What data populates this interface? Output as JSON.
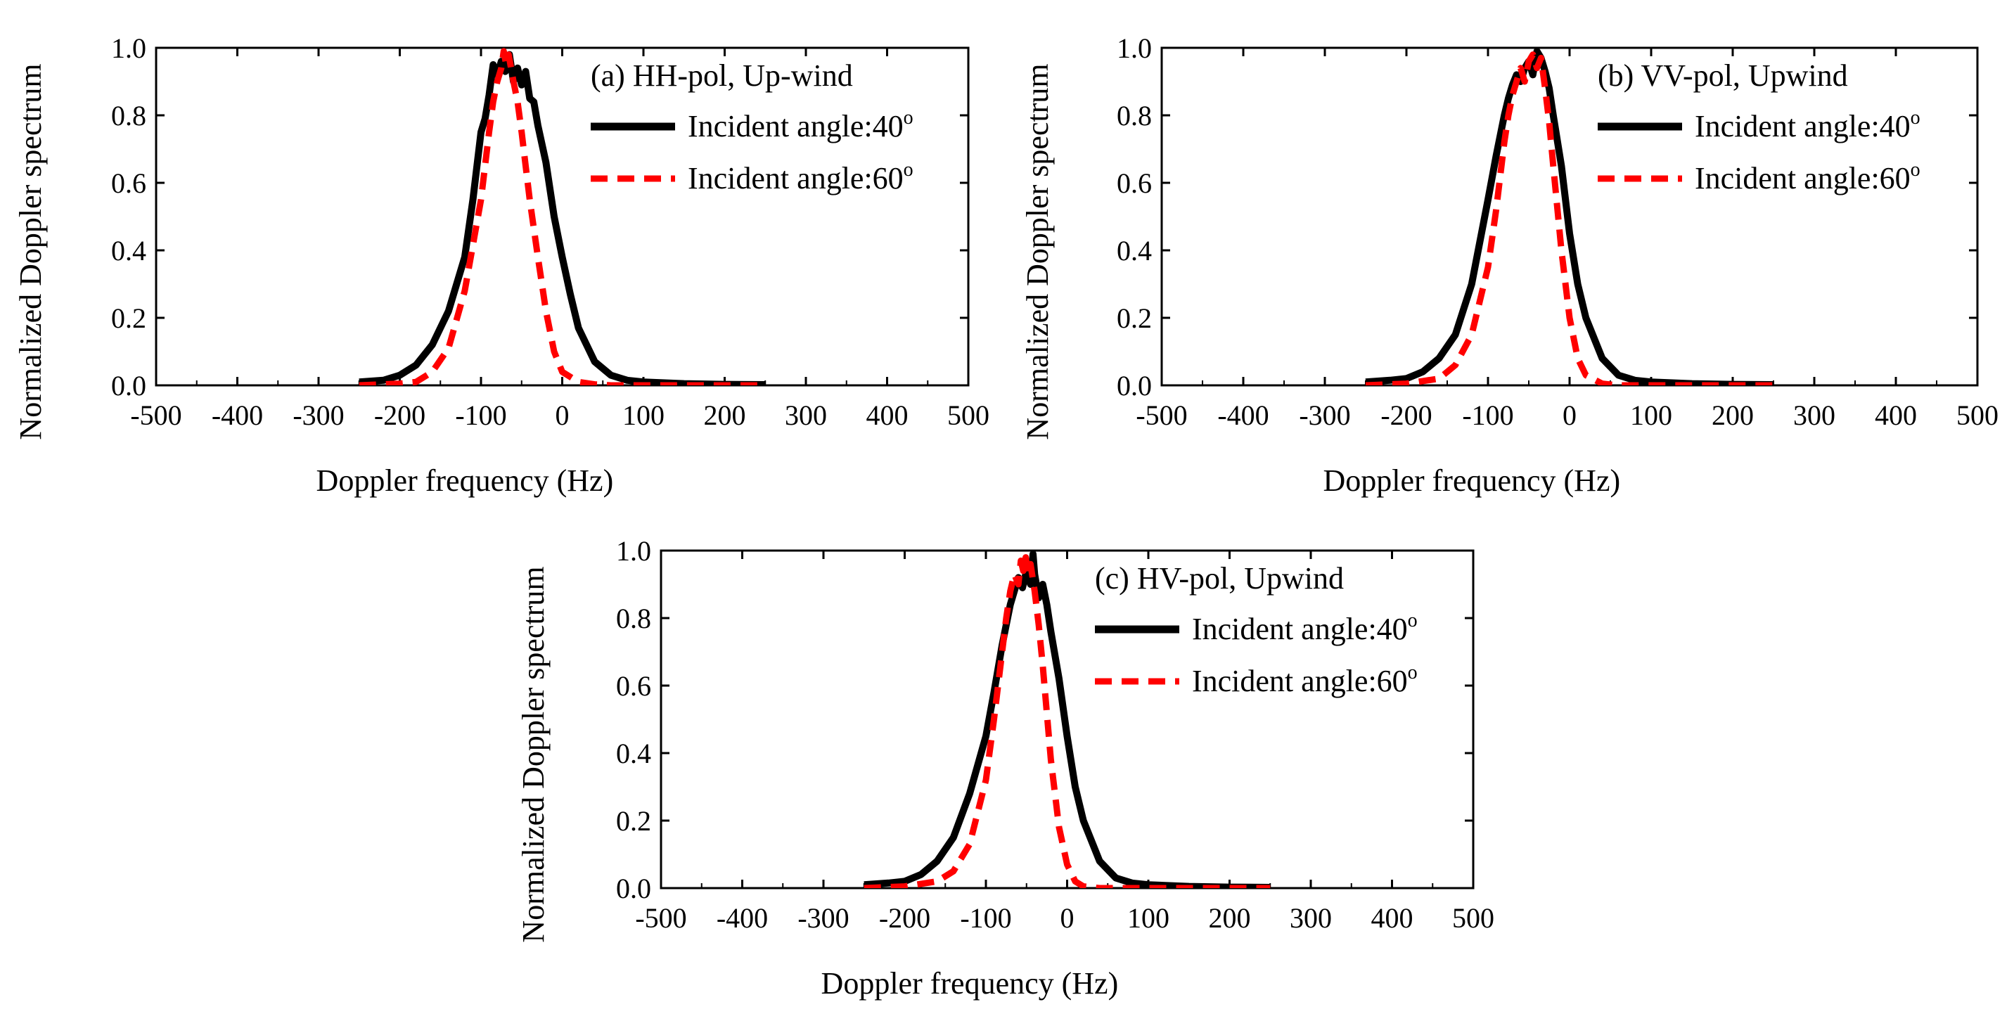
{
  "figure": {
    "background": "#ffffff"
  },
  "chart_data": [
    {
      "type": "line",
      "panel_label": "(a) HH-pol, Up-wind",
      "xlabel": "Doppler frequency (Hz)",
      "ylabel": "Normalized Doppler spectrum",
      "xlim": [
        -500,
        500
      ],
      "ylim": [
        0,
        1.0
      ],
      "xticks": [
        "-500",
        "-400",
        "-300",
        "-200",
        "-100",
        "0",
        "100",
        "200",
        "300",
        "400",
        "500"
      ],
      "yticks": [
        "0.0",
        "0.2",
        "0.4",
        "0.6",
        "0.8",
        "1.0"
      ],
      "legend_position": "top-right",
      "series": [
        {
          "name": "Incident angle:40",
          "superscript": "o",
          "color": "#000000",
          "style": "solid",
          "x": [
            -250,
            -220,
            -200,
            -180,
            -160,
            -140,
            -120,
            -110,
            -100,
            -95,
            -90,
            -85,
            -80,
            -75,
            -70,
            -65,
            -60,
            -55,
            -50,
            -45,
            -40,
            -35,
            -30,
            -20,
            -10,
            0,
            10,
            20,
            40,
            60,
            80,
            100,
            150,
            200,
            250
          ],
          "y": [
            0.01,
            0.015,
            0.03,
            0.06,
            0.12,
            0.22,
            0.38,
            0.55,
            0.75,
            0.79,
            0.86,
            0.95,
            0.92,
            0.96,
            0.93,
            0.98,
            0.9,
            0.94,
            0.89,
            0.93,
            0.85,
            0.84,
            0.77,
            0.66,
            0.5,
            0.38,
            0.27,
            0.17,
            0.07,
            0.03,
            0.015,
            0.01,
            0.005,
            0.003,
            0.002
          ]
        },
        {
          "name": "Incident angle:60",
          "superscript": "o",
          "color": "#ff0000",
          "style": "dashed",
          "x": [
            -250,
            -200,
            -180,
            -160,
            -140,
            -120,
            -100,
            -90,
            -85,
            -80,
            -75,
            -72,
            -69,
            -66,
            -63,
            -60,
            -55,
            -50,
            -45,
            -40,
            -30,
            -20,
            -10,
            0,
            20,
            40,
            60,
            100,
            150,
            200,
            250
          ],
          "y": [
            0.0,
            0.005,
            0.01,
            0.04,
            0.11,
            0.28,
            0.55,
            0.75,
            0.84,
            0.9,
            0.94,
            0.99,
            0.95,
            0.98,
            0.94,
            0.9,
            0.84,
            0.75,
            0.65,
            0.55,
            0.38,
            0.22,
            0.1,
            0.04,
            0.01,
            0.003,
            0.0,
            0.0,
            0.0,
            0.0,
            0.0
          ]
        }
      ]
    },
    {
      "type": "line",
      "panel_label": "(b) VV-pol, Upwind",
      "xlabel": "Doppler frequency (Hz)",
      "ylabel": "Normalized Doppler spectrum",
      "xlim": [
        -500,
        500
      ],
      "ylim": [
        0,
        1.0
      ],
      "xticks": [
        "-500",
        "-400",
        "-300",
        "-200",
        "-100",
        "0",
        "100",
        "200",
        "300",
        "400",
        "500"
      ],
      "yticks": [
        "0.0",
        "0.2",
        "0.4",
        "0.6",
        "0.8",
        "1.0"
      ],
      "legend_position": "top-right",
      "series": [
        {
          "name": "Incident angle:40",
          "superscript": "o",
          "color": "#000000",
          "style": "solid",
          "x": [
            -250,
            -220,
            -200,
            -180,
            -160,
            -140,
            -120,
            -100,
            -90,
            -80,
            -75,
            -70,
            -65,
            -60,
            -55,
            -50,
            -45,
            -40,
            -35,
            -30,
            -25,
            -20,
            -10,
            0,
            10,
            20,
            40,
            60,
            80,
            100,
            150,
            200,
            250
          ],
          "y": [
            0.01,
            0.015,
            0.02,
            0.04,
            0.08,
            0.15,
            0.3,
            0.55,
            0.68,
            0.8,
            0.85,
            0.89,
            0.92,
            0.9,
            0.94,
            0.96,
            0.92,
            0.99,
            0.97,
            0.93,
            0.88,
            0.8,
            0.65,
            0.45,
            0.3,
            0.2,
            0.08,
            0.03,
            0.015,
            0.01,
            0.005,
            0.003,
            0.002
          ]
        },
        {
          "name": "Incident angle:60",
          "superscript": "o",
          "color": "#ff0000",
          "style": "dashed",
          "x": [
            -250,
            -200,
            -160,
            -140,
            -120,
            -100,
            -90,
            -80,
            -75,
            -70,
            -65,
            -60,
            -55,
            -50,
            -45,
            -40,
            -35,
            -30,
            -25,
            -20,
            -10,
            0,
            10,
            20,
            40,
            60,
            100,
            150,
            200,
            250
          ],
          "y": [
            0.0,
            0.005,
            0.02,
            0.06,
            0.15,
            0.35,
            0.52,
            0.72,
            0.8,
            0.86,
            0.9,
            0.94,
            0.9,
            0.96,
            0.98,
            0.94,
            0.97,
            0.88,
            0.78,
            0.65,
            0.4,
            0.2,
            0.08,
            0.03,
            0.005,
            0.0,
            0.0,
            0.0,
            0.0,
            0.0
          ]
        }
      ]
    },
    {
      "type": "line",
      "panel_label": "(c) HV-pol, Upwind",
      "xlabel": "Doppler frequency (Hz)",
      "ylabel": "Normalized Doppler spectrum",
      "xlim": [
        -500,
        500
      ],
      "ylim": [
        0,
        1.0
      ],
      "xticks": [
        "-500",
        "-400",
        "-300",
        "-200",
        "-100",
        "0",
        "100",
        "200",
        "300",
        "400",
        "500"
      ],
      "yticks": [
        "0.0",
        "0.2",
        "0.4",
        "0.6",
        "0.8",
        "1.0"
      ],
      "legend_position": "top-right",
      "series": [
        {
          "name": "Incident angle:40",
          "superscript": "o",
          "color": "#000000",
          "style": "solid",
          "x": [
            -250,
            -220,
            -200,
            -180,
            -160,
            -140,
            -120,
            -100,
            -90,
            -80,
            -70,
            -65,
            -60,
            -55,
            -50,
            -45,
            -42,
            -40,
            -35,
            -30,
            -25,
            -20,
            -10,
            0,
            10,
            20,
            40,
            60,
            80,
            100,
            150,
            200,
            250
          ],
          "y": [
            0.01,
            0.015,
            0.02,
            0.04,
            0.08,
            0.15,
            0.28,
            0.45,
            0.58,
            0.72,
            0.84,
            0.88,
            0.92,
            0.89,
            0.94,
            0.9,
            0.99,
            0.93,
            0.86,
            0.9,
            0.84,
            0.76,
            0.62,
            0.45,
            0.3,
            0.2,
            0.08,
            0.03,
            0.015,
            0.01,
            0.005,
            0.003,
            0.002
          ]
        },
        {
          "name": "Incident angle:60",
          "superscript": "o",
          "color": "#ff0000",
          "style": "dashed",
          "x": [
            -250,
            -200,
            -160,
            -140,
            -120,
            -100,
            -90,
            -80,
            -75,
            -70,
            -65,
            -60,
            -57,
            -54,
            -51,
            -48,
            -45,
            -40,
            -35,
            -30,
            -25,
            -20,
            -10,
            0,
            10,
            20,
            40,
            60,
            100,
            150,
            200,
            250
          ],
          "y": [
            0.0,
            0.005,
            0.02,
            0.05,
            0.13,
            0.32,
            0.5,
            0.7,
            0.8,
            0.88,
            0.93,
            0.9,
            0.97,
            0.94,
            0.98,
            0.93,
            0.96,
            0.88,
            0.78,
            0.66,
            0.52,
            0.38,
            0.18,
            0.07,
            0.02,
            0.005,
            0.0,
            0.0,
            0.0,
            0.0,
            0.0,
            0.0
          ]
        }
      ]
    }
  ]
}
